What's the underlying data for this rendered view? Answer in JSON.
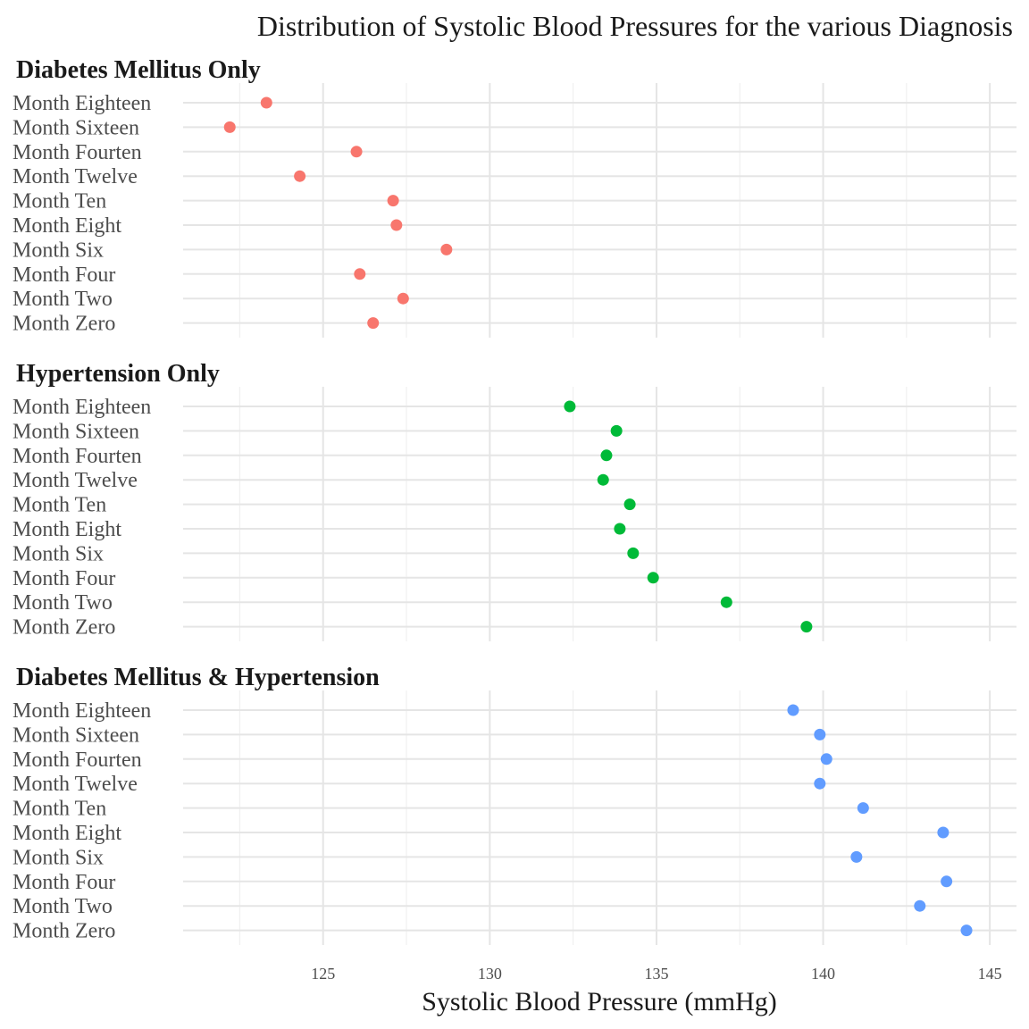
{
  "chart_data": {
    "type": "scatter",
    "title": "Distribution of Systolic Blood Pressures for  the various Diagnosis",
    "xlabel": "Systolic Blood Pressure (mmHg)",
    "xlim": [
      120.8,
      145.8
    ],
    "xticks": [
      125,
      130,
      135,
      140,
      145
    ],
    "grid": true,
    "categories": [
      "Month Eighteen",
      "Month Sixteen",
      "Month Fourten",
      "Month Twelve",
      "Month Ten",
      "Month Eight",
      "Month Six",
      "Month Four",
      "Month Two",
      "Month Zero"
    ],
    "series": [
      {
        "name": "Diabetes Mellitus Only",
        "color": "#F8766D",
        "values": [
          123.3,
          122.2,
          126.0,
          124.3,
          127.1,
          127.2,
          128.7,
          126.1,
          127.4,
          126.5
        ]
      },
      {
        "name": "Hypertension Only",
        "color": "#00BA38",
        "values": [
          132.4,
          133.8,
          133.5,
          133.4,
          134.2,
          133.9,
          134.3,
          134.9,
          137.1,
          139.5
        ]
      },
      {
        "name": "Diabetes Mellitus & Hypertension",
        "color": "#619CFF",
        "values": [
          139.1,
          139.9,
          140.1,
          139.9,
          141.2,
          143.6,
          141.0,
          143.7,
          142.9,
          144.3
        ]
      }
    ]
  }
}
